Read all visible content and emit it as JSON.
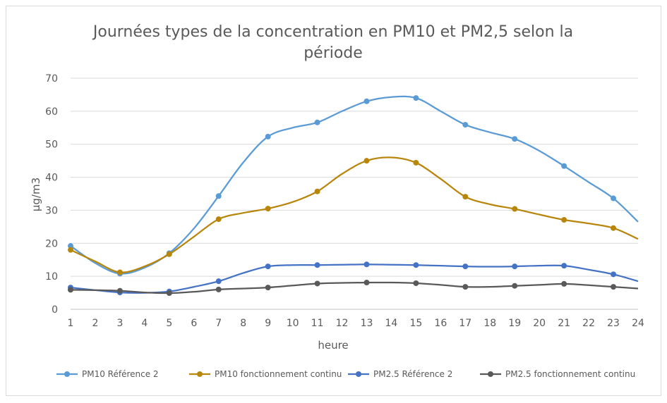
{
  "chart_data": {
    "type": "line",
    "title_line1": "Journées types de la concentration en PM10 et PM2,5 selon la",
    "title_line2": "période",
    "xlabel": "heure",
    "ylabel": "µg/m3",
    "ylim": [
      0,
      70
    ],
    "yticks": [
      0,
      10,
      20,
      30,
      40,
      50,
      60,
      70
    ],
    "x": [
      1,
      2,
      3,
      4,
      5,
      6,
      7,
      8,
      9,
      10,
      11,
      12,
      13,
      14,
      15,
      16,
      17,
      18,
      19,
      20,
      21,
      22,
      23,
      24
    ],
    "grid": true,
    "legend_position": "bottom",
    "series": [
      {
        "name": "PM10 Référence 2",
        "color": "#5b9bd5",
        "values": [
          19.2,
          14.0,
          10.8,
          12.6,
          17.0,
          24.5,
          34.3,
          44.5,
          52.3,
          55.0,
          56.6,
          60.0,
          63.0,
          64.3,
          64.0,
          60.0,
          55.9,
          53.6,
          51.6,
          48.0,
          43.4,
          38.5,
          33.6,
          26.5
        ]
      },
      {
        "name": "PM10 fonctionnement continu",
        "color": "#b8860b",
        "values": [
          18.0,
          14.5,
          11.2,
          13.0,
          16.7,
          22.0,
          27.3,
          29.2,
          30.5,
          32.5,
          35.7,
          41.0,
          45.0,
          46.0,
          44.4,
          39.5,
          34.1,
          31.8,
          30.4,
          28.7,
          27.1,
          26.0,
          24.6,
          21.3
        ]
      },
      {
        "name": "PM2.5 Référence 2",
        "color": "#4472c4",
        "values": [
          6.6,
          5.8,
          5.1,
          5.0,
          5.4,
          6.8,
          8.5,
          11.0,
          13.0,
          13.4,
          13.4,
          13.5,
          13.6,
          13.5,
          13.4,
          13.2,
          13.0,
          12.9,
          13.0,
          13.2,
          13.2,
          12.0,
          10.6,
          8.5
        ]
      },
      {
        "name": "PM2.5 fonctionnement continu",
        "color": "#595959",
        "values": [
          5.9,
          5.8,
          5.6,
          5.1,
          4.9,
          5.3,
          6.0,
          6.3,
          6.6,
          7.2,
          7.8,
          8.0,
          8.1,
          8.1,
          7.9,
          7.4,
          6.8,
          6.8,
          7.1,
          7.4,
          7.7,
          7.3,
          6.8,
          6.3
        ]
      }
    ]
  }
}
